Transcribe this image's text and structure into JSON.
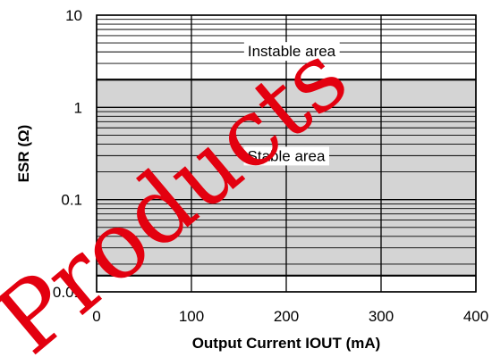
{
  "chart_data": {
    "type": "area",
    "xlabel": "Output Current IOUT (mA)",
    "ylabel": "ESR (Ω)",
    "x_ticks": [
      "0",
      "100",
      "200",
      "300",
      "400"
    ],
    "y_ticks": [
      "0.01",
      "0.1",
      "1",
      "10"
    ],
    "xlim": [
      0,
      400
    ],
    "ylim": [
      0.01,
      10
    ],
    "y_scale": "log",
    "grid": true,
    "stable_region": {
      "name": "Stable area",
      "x": [
        0,
        400
      ],
      "esr_min": 0.015,
      "esr_max": 2,
      "fill": "#d4d4d4"
    },
    "instable_region": {
      "name": "Instable area",
      "x": [
        0,
        400
      ],
      "esr_min": 2,
      "esr_max": 10
    }
  },
  "watermark": "Products",
  "colors": {
    "watermark": "#e3000f",
    "stable_fill": "#d4d4d4",
    "grid": "#000000"
  }
}
